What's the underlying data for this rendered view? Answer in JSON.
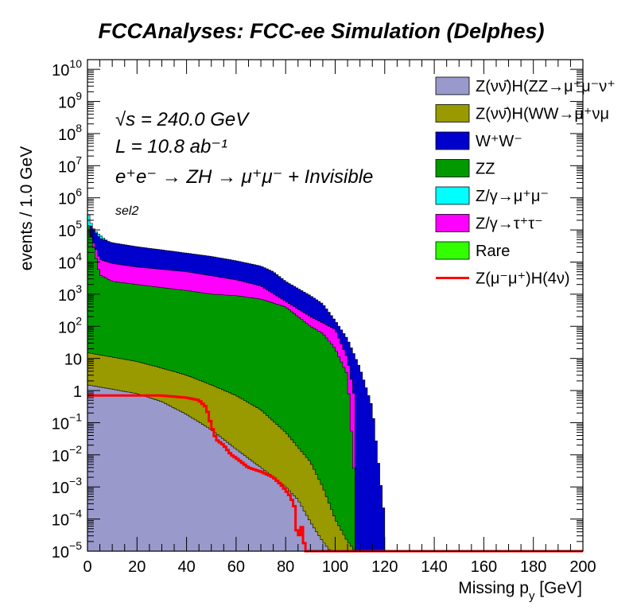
{
  "chart_data": {
    "type": "area",
    "title": "FCCAnalyses: FCC-ee Simulation (Delphes)",
    "xlabel": "Missing p_y [GeV]",
    "ylabel": "events / 1.0 GeV",
    "xlim": [
      0,
      200
    ],
    "ylim": [
      1e-05,
      20000000000
    ],
    "yscale": "log",
    "grid": false,
    "legend_position": "top-right",
    "x_ticks": [
      "0",
      "20",
      "40",
      "60",
      "80",
      "100",
      "120",
      "140",
      "160",
      "180",
      "200"
    ],
    "y_ticks": [
      {
        "base": "10",
        "exp": "10"
      },
      {
        "base": "10",
        "exp": "9"
      },
      {
        "base": "10",
        "exp": "8"
      },
      {
        "base": "10",
        "exp": "7"
      },
      {
        "base": "10",
        "exp": "6"
      },
      {
        "base": "10",
        "exp": "5"
      },
      {
        "base": "10",
        "exp": "4"
      },
      {
        "base": "10",
        "exp": "3"
      },
      {
        "base": "10",
        "exp": "2"
      },
      {
        "base": "10",
        "exp": ""
      },
      {
        "base": "1",
        "exp": ""
      },
      {
        "base": "10",
        "exp": "−1"
      },
      {
        "base": "10",
        "exp": "−2"
      },
      {
        "base": "10",
        "exp": "−3"
      },
      {
        "base": "10",
        "exp": "−4"
      },
      {
        "base": "10",
        "exp": "−5"
      }
    ],
    "annotations": {
      "energy": "√s = 240.0 GeV",
      "lumi": "L = 10.8 ab⁻¹",
      "process": "e⁺e⁻ → ZH → μ⁺μ⁻ + Invisible",
      "selection": "sel2"
    },
    "stacked_series": [
      {
        "name": "Z(νν̄)H(ZZ→μ⁺μ⁻ν⁺",
        "color": "#9999cc",
        "x": [
          0,
          10,
          20,
          30,
          40,
          50,
          60,
          70,
          80,
          85,
          90,
          95,
          98,
          100
        ],
        "values": [
          1.5,
          1.1,
          0.8,
          0.45,
          0.18,
          0.06,
          0.015,
          0.004,
          0.001,
          0.0004,
          8e-05,
          2e-05,
          1e-05,
          1e-05
        ]
      },
      {
        "name": "Z(νν̄)H(WW→μ⁺νμ",
        "color": "#999900",
        "x": [
          0,
          10,
          20,
          30,
          40,
          50,
          60,
          70,
          80,
          90,
          95,
          100,
          105,
          108
        ],
        "values": [
          15,
          11,
          8,
          5,
          3,
          1.5,
          0.7,
          0.25,
          0.05,
          0.006,
          0.001,
          0.0001,
          2e-05,
          1e-05
        ]
      },
      {
        "name": "W⁺W⁻",
        "color": "#0000cc",
        "x": [
          1,
          5,
          10,
          20,
          30,
          40,
          50,
          60,
          70,
          75,
          80,
          85,
          90,
          95,
          100,
          105,
          110,
          115,
          120
        ],
        "values": [
          150000,
          55000,
          40000,
          30000,
          24000,
          19000,
          15000,
          11000,
          7500,
          5000,
          2500,
          1500,
          900,
          500,
          150,
          40,
          5,
          0.3,
          0.0001
        ]
      },
      {
        "name": "ZZ",
        "color": "#009900",
        "x": [
          0,
          5,
          10,
          20,
          30,
          40,
          50,
          60,
          70,
          80,
          85,
          90,
          95,
          100,
          105,
          108
        ],
        "values": [
          200000,
          4000,
          2500,
          2000,
          1600,
          1300,
          1000,
          900,
          700,
          400,
          200,
          100,
          60,
          20,
          3,
          0.001
        ]
      },
      {
        "name": "Z/γ→μ⁺μ⁻",
        "color": "#00ffff",
        "x": [
          0,
          2,
          4,
          6,
          8,
          10
        ],
        "values": [
          400000,
          120000,
          80000,
          60000,
          45000,
          35000
        ]
      },
      {
        "name": "Z/γ→τ⁺τ⁻",
        "color": "#ff00ff",
        "x": [
          1,
          5,
          10,
          20,
          40,
          60,
          70,
          80,
          90,
          100,
          105,
          108
        ],
        "values": [
          80000,
          12000,
          9000,
          7000,
          5000,
          2800,
          1800,
          600,
          200,
          80,
          10,
          0.5
        ]
      },
      {
        "name": "Rare",
        "color": "#33ff00",
        "x": [],
        "values": []
      }
    ],
    "signal": {
      "name": "Z(μ⁻μ⁺)H(4ν)",
      "color": "#ff0000",
      "x": [
        0,
        10,
        20,
        30,
        40,
        45,
        48,
        50,
        52,
        55,
        58,
        60,
        65,
        70,
        75,
        78,
        80,
        82,
        84,
        85,
        86,
        88,
        90,
        200
      ],
      "values": [
        0.7,
        0.7,
        0.7,
        0.7,
        0.6,
        0.5,
        0.3,
        0.08,
        0.03,
        0.02,
        0.01,
        0.008,
        0.004,
        0.003,
        0.002,
        0.0012,
        0.0008,
        0.0005,
        0.0002,
        1e-05,
        0.0001,
        1e-05,
        1e-05,
        1e-05
      ]
    }
  }
}
